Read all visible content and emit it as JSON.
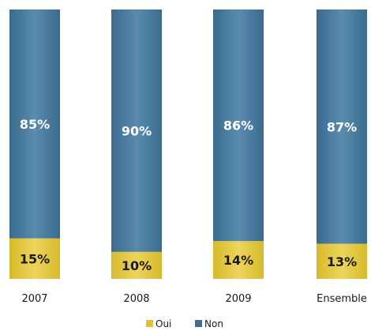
{
  "chart_data": {
    "type": "bar",
    "stacked": true,
    "percent": true,
    "categories": [
      "2007",
      "2008",
      "2009",
      "Ensemble"
    ],
    "series": [
      {
        "name": "Oui",
        "values": [
          15,
          10,
          14,
          13
        ],
        "labels": [
          "15%",
          "10%",
          "14%",
          "13%"
        ],
        "color": "#e0c231"
      },
      {
        "name": "Non",
        "values": [
          85,
          90,
          86,
          87
        ],
        "labels": [
          "85%",
          "90%",
          "86%",
          "87%"
        ],
        "color": "#3d6f93"
      }
    ],
    "legend_position": "bottom",
    "grid": false,
    "ylim": [
      0,
      100
    ]
  }
}
